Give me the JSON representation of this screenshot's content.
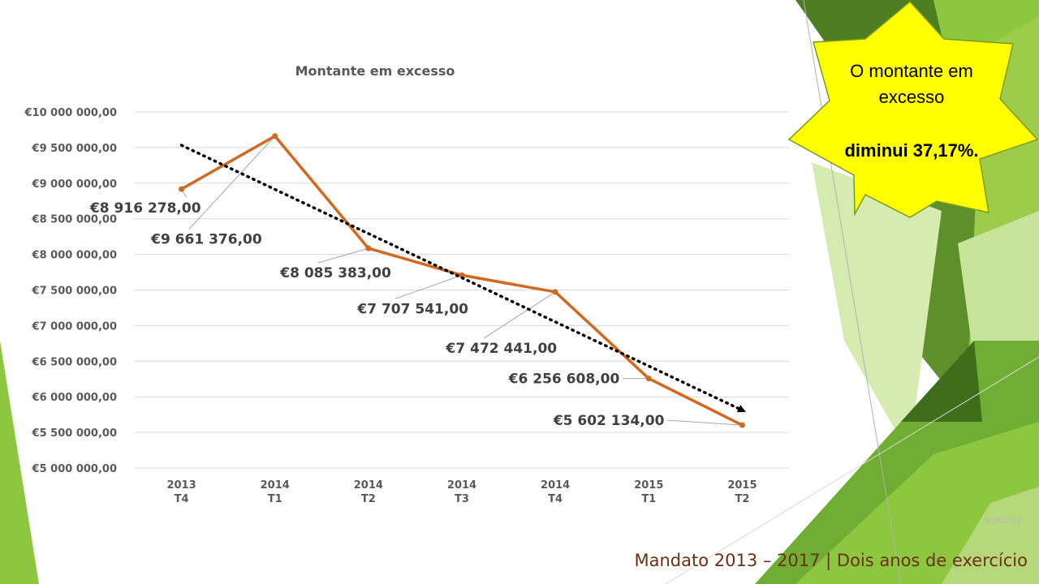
{
  "chart_data": {
    "type": "line",
    "title": "Montante em excesso",
    "categories": [
      [
        "2013",
        "T4"
      ],
      [
        "2014",
        "T1"
      ],
      [
        "2014",
        "T2"
      ],
      [
        "2014",
        "T3"
      ],
      [
        "2014",
        "T4"
      ],
      [
        "2015",
        "T1"
      ],
      [
        "2015",
        "T2"
      ]
    ],
    "values": [
      8916278,
      9661376,
      8085383,
      7707541,
      7472441,
      6256608,
      5602134
    ],
    "data_labels": [
      "€8 916 278,00",
      "€9 661 376,00",
      "€8 085 383,00",
      "€7 707 541,00",
      "€7 472 441,00",
      "€6 256 608,00",
      "€5 602 134,00"
    ],
    "ylim": [
      5000000,
      10000000
    ],
    "ytick_step": 500000,
    "ytick_labels": [
      "€5 000 000,00",
      "€5 500 000,00",
      "€6 000 000,00",
      "€6 500 000,00",
      "€7 000 000,00",
      "€7 500 000,00",
      "€8 000 000,00",
      "€8 500 000,00",
      "€9 000 000,00",
      "€9 500 000,00",
      "€10 000 000,00"
    ],
    "trendline": {
      "type": "linear",
      "style": "dotted",
      "arrow": true,
      "color": "#000000"
    },
    "series_color": "#d2691e",
    "grid": true,
    "legend": "none"
  },
  "callout": {
    "line1": "O montante em excesso",
    "line2": "diminui 37,17%.",
    "fill": "#ffff00",
    "stroke": "#7a9a1a"
  },
  "slide": {
    "date": "9/28/2015",
    "footer": "Mandato 2013 – 2017 | Dois anos de exercício"
  },
  "theme": {
    "green_dark": "#5a8a2a",
    "green_mid": "#8dc63f",
    "green_light": "#c5e08a"
  }
}
